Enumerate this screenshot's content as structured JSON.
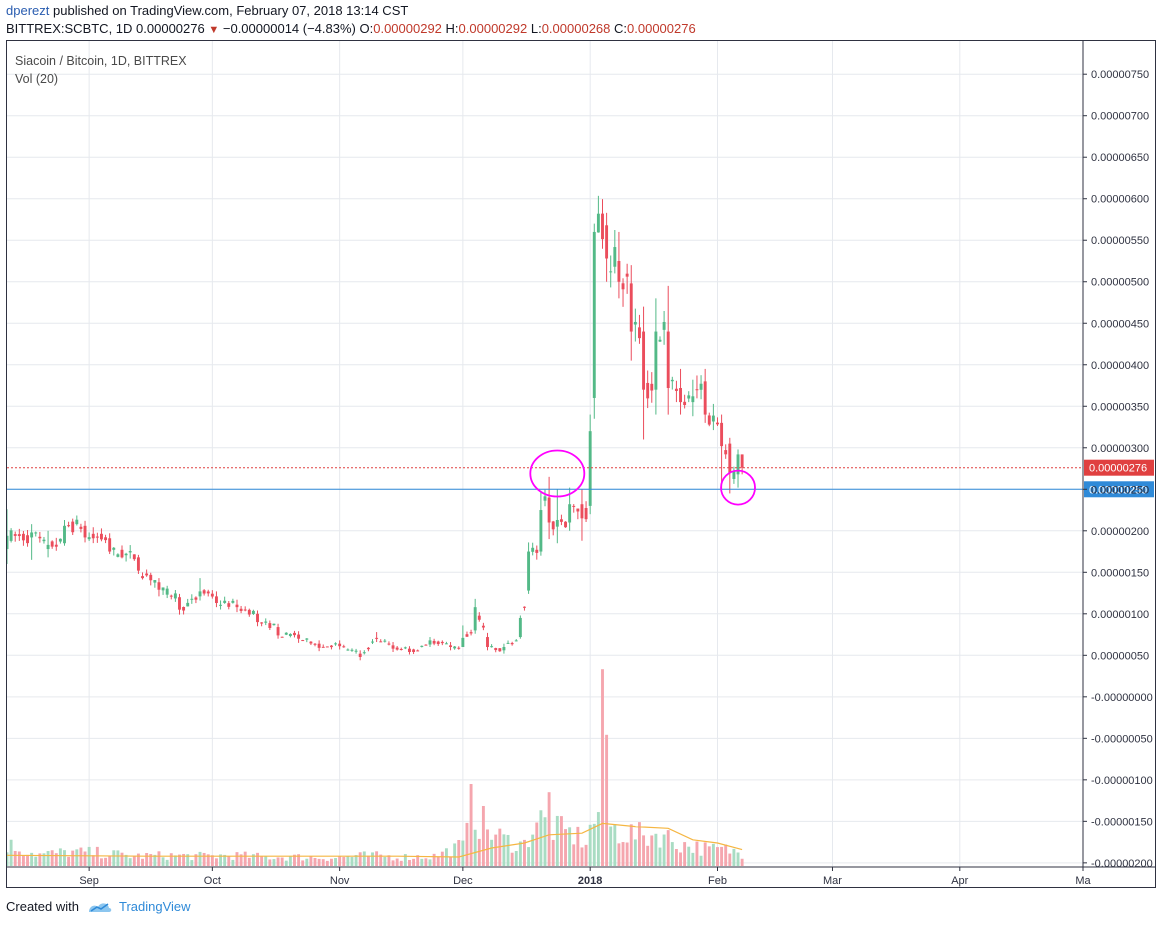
{
  "header": {
    "user": "dperezt",
    "published_text": "published on TradingView.com, February 07, 2018 13:14 CST",
    "symbol_line": "BITTREX:SCBTC, 1D",
    "last": "0.00000276",
    "change": "−0.00000014 (−4.83%)",
    "o_label": "O:",
    "o_value": "0.00000292",
    "h_label": "H:",
    "h_value": "0.00000292",
    "l_label": "L:",
    "l_value": "0.00000268",
    "c_label": "C:",
    "c_value": "0.00000276"
  },
  "legend": {
    "title": "Siacoin / Bitcoin, 1D, BITTREX",
    "volume": "Vol (20)"
  },
  "footer": {
    "created_with": "Created with",
    "brand": "TradingView"
  },
  "colors": {
    "up": "#53b987",
    "down": "#eb4d5c",
    "vol_up": "#a9dcc3",
    "vol_down": "#f5a6ae",
    "vol_ma": "#f5b642",
    "annotation": "#ff00ff",
    "price_line": "#e04040",
    "hline": "#2f8ad8"
  },
  "chart_data": {
    "type": "candlestick",
    "title": "Siacoin / Bitcoin, 1D, BITTREX",
    "y_axis_labels": [
      "0.00000750",
      "0.00000700",
      "0.00000650",
      "0.00000600",
      "0.00000550",
      "0.00000500",
      "0.00000450",
      "0.00000400",
      "0.00000350",
      "0.00000300",
      "0.00000250",
      "0.00000200",
      "0.00000150",
      "0.00000100",
      "0.00000050",
      "-0.00000000",
      "-0.00000050",
      "-0.00000100",
      "-0.00000150",
      "-0.00000200"
    ],
    "y_ticks": [
      750,
      700,
      650,
      600,
      550,
      500,
      450,
      400,
      350,
      300,
      250,
      200,
      150,
      100,
      50,
      0,
      -50,
      -100,
      -150,
      -200
    ],
    "y_unit_note": "price in satoshi-units ×1e-8 BTC",
    "ylim": [
      -205,
      790
    ],
    "x_tick_labels": [
      "Sep",
      "Oct",
      "Nov",
      "Dec",
      "2018",
      "Feb",
      "Mar",
      "Apr",
      "Ma"
    ],
    "x_ticks": [
      "2017-09-01",
      "2017-10-01",
      "2017-11-01",
      "2017-12-01",
      "2018-01-01",
      "2018-02-01",
      "2018-03-01",
      "2018-04-01",
      "2018-05-01"
    ],
    "x_range": [
      "2017-08-12",
      "2018-05-01"
    ],
    "last_price_label": "0.00000276",
    "last_price": 276,
    "hline_label": "0.00000250",
    "hline_value": 250,
    "annotations": [
      {
        "date": "2017-12-24",
        "price": 269
      },
      {
        "date": "2018-02-06",
        "price": 252
      }
    ],
    "ohlc_anchors": [
      [
        "2017-08-12",
        178,
        194,
        226,
        160
      ],
      [
        "2017-08-18",
        192,
        198,
        208,
        165
      ],
      [
        "2017-08-22",
        178,
        183,
        200,
        168
      ],
      [
        "2017-08-26",
        185,
        206,
        213,
        182
      ],
      [
        "2017-08-31",
        206,
        192,
        212,
        186
      ],
      [
        "2017-09-06",
        191,
        175,
        197,
        172
      ],
      [
        "2017-09-13",
        168,
        152,
        171,
        148
      ],
      [
        "2017-09-18",
        138,
        129,
        143,
        121
      ],
      [
        "2017-09-23",
        120,
        105,
        124,
        99
      ],
      [
        "2017-09-28",
        121,
        127,
        143,
        116
      ],
      [
        "2017-10-02",
        121,
        113,
        127,
        108
      ],
      [
        "2017-10-07",
        111,
        108,
        117,
        102
      ],
      [
        "2017-10-12",
        100,
        90,
        104,
        85
      ],
      [
        "2017-10-17",
        84,
        74,
        88,
        70
      ],
      [
        "2017-10-22",
        75,
        70,
        79,
        65
      ],
      [
        "2017-10-27",
        64,
        59,
        68,
        55
      ],
      [
        "2017-11-01",
        64,
        61,
        68,
        57
      ],
      [
        "2017-11-06",
        52,
        48,
        56,
        44
      ],
      [
        "2017-11-10",
        71,
        70,
        78,
        66
      ],
      [
        "2017-11-14",
        62,
        58,
        66,
        54
      ],
      [
        "2017-11-18",
        58,
        54,
        61,
        51
      ],
      [
        "2017-11-23",
        63,
        68,
        72,
        60
      ],
      [
        "2017-11-28",
        62,
        60,
        66,
        56
      ],
      [
        "2017-12-01",
        60,
        71,
        86,
        60
      ],
      [
        "2017-12-04",
        80,
        108,
        118,
        76
      ],
      [
        "2017-12-07",
        72,
        60,
        77,
        56
      ],
      [
        "2017-12-11",
        56,
        60,
        64,
        52
      ],
      [
        "2017-12-15",
        72,
        95,
        98,
        70
      ],
      [
        "2017-12-17",
        128,
        175,
        186,
        124
      ],
      [
        "2017-12-20",
        175,
        225,
        248,
        170
      ],
      [
        "2017-12-22",
        240,
        210,
        265,
        190
      ],
      [
        "2017-12-24",
        205,
        213,
        250,
        185
      ],
      [
        "2017-12-27",
        210,
        232,
        252,
        200
      ],
      [
        "2017-12-30",
        232,
        215,
        250,
        188
      ],
      [
        "2018-01-01",
        230,
        320,
        340,
        220
      ],
      [
        "2018-01-02",
        360,
        560,
        570,
        335
      ],
      [
        "2018-01-05",
        568,
        528,
        583,
        500
      ],
      [
        "2018-01-08",
        525,
        500,
        560,
        480
      ],
      [
        "2018-01-11",
        498,
        440,
        520,
        405
      ],
      [
        "2018-01-14",
        440,
        370,
        470,
        310
      ],
      [
        "2018-01-17",
        370,
        440,
        480,
        340
      ],
      [
        "2018-01-20",
        440,
        372,
        495,
        340
      ],
      [
        "2018-01-23",
        372,
        355,
        395,
        340
      ],
      [
        "2018-01-26",
        355,
        362,
        382,
        338
      ],
      [
        "2018-01-29",
        380,
        340,
        395,
        330
      ],
      [
        "2018-02-02",
        330,
        302,
        340,
        250
      ],
      [
        "2018-02-04",
        305,
        270,
        312,
        245
      ],
      [
        "2018-02-06",
        268,
        292,
        298,
        252
      ],
      [
        "2018-02-07",
        292,
        276,
        292,
        268
      ]
    ],
    "volume_anchors": [
      [
        "2017-08-12",
        26
      ],
      [
        "2017-08-20",
        14
      ],
      [
        "2017-08-27",
        17
      ],
      [
        "2017-09-04",
        16
      ],
      [
        "2017-09-12",
        12
      ],
      [
        "2017-09-20",
        13
      ],
      [
        "2017-09-28",
        12
      ],
      [
        "2017-10-06",
        13
      ],
      [
        "2017-10-14",
        11
      ],
      [
        "2017-10-22",
        11
      ],
      [
        "2017-10-30",
        10
      ],
      [
        "2017-11-08",
        13
      ],
      [
        "2017-11-16",
        11
      ],
      [
        "2017-11-24",
        12
      ],
      [
        "2017-12-01",
        25
      ],
      [
        "2017-12-04",
        62
      ],
      [
        "2017-12-08",
        40
      ],
      [
        "2017-12-12",
        30
      ],
      [
        "2017-12-16",
        26
      ],
      [
        "2017-12-19",
        58
      ],
      [
        "2017-12-22",
        48
      ],
      [
        "2017-12-25",
        42
      ],
      [
        "2017-12-28",
        38
      ],
      [
        "2017-12-31",
        30
      ],
      [
        "2018-01-03",
        68
      ],
      [
        "2018-01-06",
        46
      ],
      [
        "2018-01-10",
        40
      ],
      [
        "2018-01-14",
        36
      ],
      [
        "2018-01-18",
        40
      ],
      [
        "2018-01-22",
        28
      ],
      [
        "2018-01-26",
        24
      ],
      [
        "2018-01-30",
        20
      ],
      [
        "2018-02-03",
        20
      ],
      [
        "2018-02-07",
        16
      ]
    ],
    "volume_spikes": [
      [
        "2017-12-03",
        100
      ],
      [
        "2017-12-22",
        90
      ],
      [
        "2018-01-04",
        240
      ],
      [
        "2018-01-05",
        160
      ]
    ],
    "volume_ma_anchors": [
      [
        "2017-08-12",
        13
      ],
      [
        "2017-09-15",
        12
      ],
      [
        "2017-10-15",
        12
      ],
      [
        "2017-11-15",
        12
      ],
      [
        "2017-11-30",
        11
      ],
      [
        "2017-12-08",
        22
      ],
      [
        "2017-12-16",
        28
      ],
      [
        "2017-12-22",
        38
      ],
      [
        "2017-12-30",
        40
      ],
      [
        "2018-01-04",
        52
      ],
      [
        "2018-01-12",
        48
      ],
      [
        "2018-01-20",
        46
      ],
      [
        "2018-01-26",
        32
      ],
      [
        "2018-02-01",
        28
      ],
      [
        "2018-02-07",
        20
      ]
    ]
  }
}
